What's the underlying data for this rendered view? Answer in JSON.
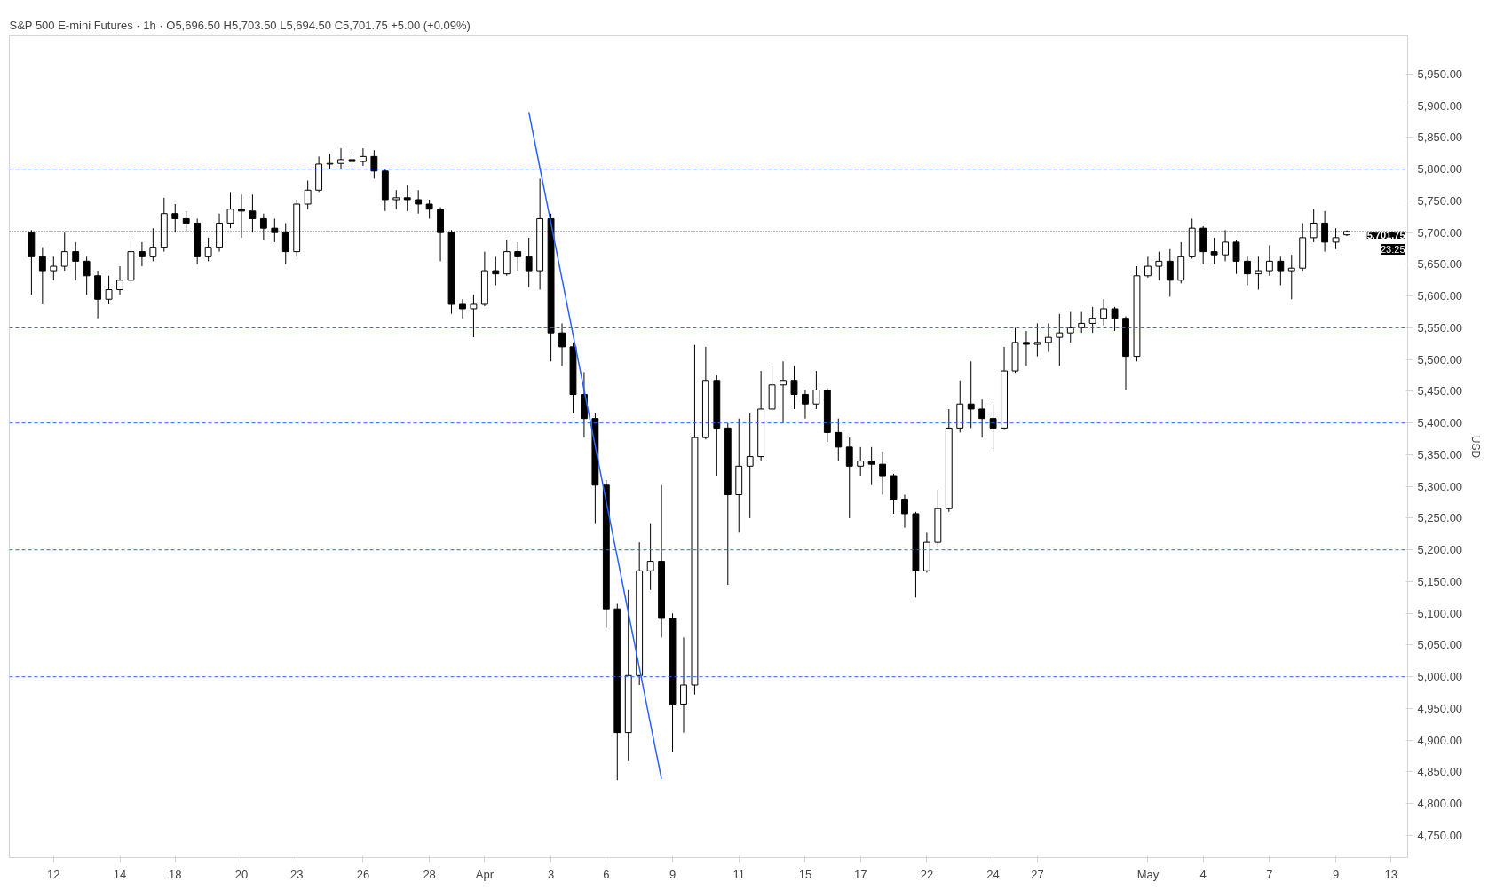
{
  "chart_data": {
    "type": "candlestick",
    "title": "S&P 500 E-mini Futures · 1h · O5,696.50 H5,703.50 L5,694.50 C5,701.75 +5.00 (+0.09%)",
    "ylabel": "USD",
    "color": "#000000",
    "categories": [
      null,
      null,
      "12",
      null,
      null,
      null,
      null,
      null,
      "14",
      null,
      null,
      null,
      null,
      "18",
      null,
      null,
      null,
      null,
      null,
      "20",
      null,
      null,
      null,
      null,
      "23",
      null,
      null,
      null,
      null,
      null,
      "26",
      null,
      null,
      null,
      null,
      null,
      "28",
      null,
      null,
      null,
      null,
      "Apr",
      null,
      null,
      null,
      null,
      null,
      "3",
      null,
      null,
      null,
      null,
      "6",
      null,
      null,
      null,
      null,
      null,
      "9",
      null,
      null,
      null,
      null,
      null,
      "11",
      null,
      null,
      null,
      null,
      null,
      "15",
      null,
      null,
      null,
      null,
      "17",
      null,
      null,
      null,
      null,
      null,
      "22",
      null,
      null,
      null,
      null,
      null,
      "24",
      null,
      null,
      null,
      "27",
      null,
      null,
      null,
      null,
      null,
      null,
      null,
      null,
      null,
      "May",
      null,
      null,
      null,
      null,
      "4",
      null,
      null,
      null,
      null,
      null,
      "7",
      null,
      null,
      null,
      null,
      null,
      "9",
      null,
      null,
      null,
      null,
      "13",
      null
    ],
    "ohlc": [
      [
        5700,
        5704,
        5602,
        5662
      ],
      [
        5662,
        5677,
        5587,
        5640
      ],
      [
        5640,
        5662,
        5625,
        5647
      ],
      [
        5647,
        5700,
        5640,
        5670
      ],
      [
        5670,
        5685,
        5625,
        5655
      ],
      [
        5655,
        5662,
        5602,
        5632
      ],
      [
        5632,
        5640,
        5565,
        5595
      ],
      [
        5595,
        5632,
        5587,
        5610
      ],
      [
        5610,
        5647,
        5602,
        5625
      ],
      [
        5625,
        5692,
        5620,
        5670
      ],
      [
        5670,
        5685,
        5647,
        5662
      ],
      [
        5662,
        5707,
        5655,
        5677
      ],
      [
        5677,
        5755,
        5670,
        5730
      ],
      [
        5730,
        5745,
        5700,
        5722
      ],
      [
        5722,
        5734,
        5700,
        5715
      ],
      [
        5715,
        5722,
        5650,
        5662
      ],
      [
        5662,
        5692,
        5655,
        5677
      ],
      [
        5677,
        5730,
        5670,
        5715
      ],
      [
        5715,
        5764,
        5707,
        5737
      ],
      [
        5737,
        5760,
        5692,
        5734
      ],
      [
        5734,
        5760,
        5700,
        5722
      ],
      [
        5722,
        5730,
        5689,
        5707
      ],
      [
        5707,
        5722,
        5685,
        5700
      ],
      [
        5700,
        5715,
        5650,
        5670
      ],
      [
        5670,
        5752,
        5662,
        5745
      ],
      [
        5745,
        5782,
        5737,
        5767
      ],
      [
        5767,
        5820,
        5764,
        5808
      ],
      [
        5808,
        5824,
        5800,
        5809
      ],
      [
        5809,
        5833,
        5800,
        5815
      ],
      [
        5815,
        5830,
        5800,
        5812
      ],
      [
        5812,
        5833,
        5805,
        5820
      ],
      [
        5820,
        5830,
        5785,
        5797
      ],
      [
        5797,
        5800,
        5734,
        5752
      ],
      [
        5752,
        5767,
        5737,
        5755
      ],
      [
        5755,
        5775,
        5734,
        5752
      ],
      [
        5752,
        5767,
        5730,
        5745
      ],
      [
        5745,
        5752,
        5722,
        5737
      ],
      [
        5737,
        5740,
        5655,
        5700
      ],
      [
        5700,
        5704,
        5572,
        5587
      ],
      [
        5587,
        5595,
        5565,
        5580
      ],
      [
        5580,
        5602,
        5535,
        5587
      ],
      [
        5587,
        5670,
        5584,
        5640
      ],
      [
        5640,
        5662,
        5617,
        5635
      ],
      [
        5635,
        5689,
        5632,
        5670
      ],
      [
        5670,
        5685,
        5640,
        5662
      ],
      [
        5662,
        5692,
        5614,
        5640
      ],
      [
        5640,
        5785,
        5610,
        5722
      ],
      [
        5722,
        5730,
        5497,
        5542
      ],
      [
        5542,
        5557,
        5490,
        5520
      ],
      [
        5520,
        5527,
        5415,
        5445
      ],
      [
        5445,
        5480,
        5377,
        5407
      ],
      [
        5407,
        5415,
        5242,
        5302
      ],
      [
        5302,
        5310,
        5077,
        5107
      ],
      [
        5107,
        5115,
        4837,
        4912
      ],
      [
        4912,
        5137,
        4867,
        5002
      ],
      [
        5002,
        5212,
        4987,
        5167
      ],
      [
        5167,
        5242,
        5137,
        5182
      ],
      [
        5182,
        5302,
        5062,
        5092
      ],
      [
        5092,
        5100,
        4882,
        4957
      ],
      [
        4957,
        5062,
        4912,
        4987
      ],
      [
        4987,
        5523,
        4972,
        5377
      ],
      [
        5377,
        5520,
        5374,
        5467
      ],
      [
        5467,
        5475,
        5317,
        5392
      ],
      [
        5392,
        5400,
        5145,
        5287
      ],
      [
        5287,
        5407,
        5227,
        5332
      ],
      [
        5332,
        5415,
        5250,
        5347
      ],
      [
        5347,
        5482,
        5340,
        5422
      ],
      [
        5422,
        5490,
        5419,
        5460
      ],
      [
        5460,
        5497,
        5400,
        5467
      ],
      [
        5467,
        5490,
        5422,
        5445
      ],
      [
        5445,
        5452,
        5407,
        5430
      ],
      [
        5430,
        5482,
        5422,
        5452
      ],
      [
        5452,
        5455,
        5370,
        5385
      ],
      [
        5385,
        5407,
        5340,
        5362
      ],
      [
        5362,
        5377,
        5250,
        5332
      ],
      [
        5332,
        5362,
        5317,
        5340
      ],
      [
        5340,
        5362,
        5302,
        5335
      ],
      [
        5335,
        5355,
        5287,
        5317
      ],
      [
        5317,
        5320,
        5257,
        5280
      ],
      [
        5280,
        5287,
        5235,
        5257
      ],
      [
        5257,
        5260,
        5125,
        5167
      ],
      [
        5167,
        5227,
        5164,
        5212
      ],
      [
        5212,
        5295,
        5205,
        5265
      ],
      [
        5265,
        5422,
        5260,
        5392
      ],
      [
        5392,
        5467,
        5385,
        5430
      ],
      [
        5430,
        5497,
        5392,
        5422
      ],
      [
        5422,
        5437,
        5377,
        5407
      ],
      [
        5407,
        5430,
        5355,
        5392
      ],
      [
        5392,
        5520,
        5389,
        5482
      ],
      [
        5482,
        5550,
        5479,
        5527
      ],
      [
        5527,
        5545,
        5490,
        5524
      ],
      [
        5524,
        5557,
        5505,
        5527
      ],
      [
        5527,
        5557,
        5512,
        5535
      ],
      [
        5535,
        5572,
        5490,
        5542
      ],
      [
        5542,
        5575,
        5527,
        5550
      ],
      [
        5550,
        5575,
        5542,
        5557
      ],
      [
        5557,
        5583,
        5542,
        5565
      ],
      [
        5565,
        5595,
        5554,
        5580
      ],
      [
        5580,
        5583,
        5545,
        5565
      ],
      [
        5565,
        5568,
        5452,
        5505
      ],
      [
        5505,
        5647,
        5497,
        5632
      ],
      [
        5632,
        5662,
        5629,
        5647
      ],
      [
        5647,
        5670,
        5625,
        5655
      ],
      [
        5655,
        5674,
        5599,
        5625
      ],
      [
        5625,
        5685,
        5620,
        5662
      ],
      [
        5662,
        5722,
        5659,
        5707
      ],
      [
        5707,
        5710,
        5650,
        5670
      ],
      [
        5670,
        5692,
        5650,
        5665
      ],
      [
        5665,
        5704,
        5655,
        5685
      ],
      [
        5685,
        5688,
        5635,
        5655
      ],
      [
        5655,
        5662,
        5617,
        5635
      ],
      [
        5635,
        5662,
        5610,
        5640
      ],
      [
        5640,
        5680,
        5632,
        5655
      ],
      [
        5655,
        5662,
        5617,
        5640
      ],
      [
        5640,
        5665,
        5595,
        5644
      ],
      [
        5644,
        5715,
        5640,
        5692
      ],
      [
        5692,
        5737,
        5685,
        5715
      ],
      [
        5715,
        5734,
        5670,
        5685
      ],
      [
        5685,
        5707,
        5674,
        5692
      ],
      [
        5696.5,
        5703.5,
        5694.5,
        5701.75
      ],
      null,
      null,
      null,
      null,
      null
    ],
    "series": [
      {
        "type": "line",
        "color": "#2962ff",
        "values": [
          null,
          null,
          null,
          null,
          null,
          null,
          null,
          null,
          null,
          null,
          null,
          null,
          null,
          null,
          null,
          null,
          null,
          null,
          null,
          null,
          null,
          null,
          null,
          null,
          null,
          null,
          null,
          null,
          null,
          null,
          null,
          null,
          null,
          null,
          null,
          null,
          null,
          null,
          null,
          null,
          null,
          null,
          null,
          null,
          null,
          5890,
          5802,
          5715,
          5627,
          5539,
          5452,
          5364,
          5276,
          5189,
          5101,
          5014,
          4926,
          4839,
          null,
          null,
          null,
          null,
          null,
          null,
          null,
          null,
          null,
          null,
          null,
          null,
          null,
          null,
          null,
          null,
          null,
          null,
          null,
          null,
          null,
          null,
          null,
          null,
          null,
          null,
          null,
          null,
          null,
          null,
          null,
          null,
          null,
          null,
          null,
          null,
          null,
          null,
          null,
          null,
          null,
          null,
          null,
          null,
          null,
          null,
          null,
          null,
          null,
          null,
          null,
          null,
          null,
          null,
          null,
          null,
          null,
          null,
          null,
          null,
          null,
          null,
          null,
          null,
          null,
          null,
          null
        ]
      }
    ],
    "ylim": [
      4715,
      6010
    ],
    "yticks": [
      {
        "value": 4750,
        "label": "4,750.00"
      },
      {
        "value": 4800,
        "label": "4,800.00"
      },
      {
        "value": 4850,
        "label": "4,850.00"
      },
      {
        "value": 4900,
        "label": "4,900.00"
      },
      {
        "value": 4950,
        "label": "4,950.00"
      },
      {
        "value": 5000,
        "label": "5,000.00"
      },
      {
        "value": 5050,
        "label": "5,050.00"
      },
      {
        "value": 5100,
        "label": "5,100.00"
      },
      {
        "value": 5150,
        "label": "5,150.00"
      },
      {
        "value": 5200,
        "label": "5,200.00"
      },
      {
        "value": 5250,
        "label": "5,250.00"
      },
      {
        "value": 5300,
        "label": "5,300.00"
      },
      {
        "value": 5350,
        "label": "5,350.00"
      },
      {
        "value": 5400,
        "label": "5,400.00"
      },
      {
        "value": 5450,
        "label": "5,450.00"
      },
      {
        "value": 5500,
        "label": "5,500.00"
      },
      {
        "value": 5550,
        "label": "5,550.00"
      },
      {
        "value": 5600,
        "label": "5,600.00"
      },
      {
        "value": 5650,
        "label": "5,650.00"
      },
      {
        "value": 5700,
        "label": "5,700.00"
      },
      {
        "value": 5750,
        "label": "5,750.00"
      },
      {
        "value": 5800,
        "label": "5,800.00"
      },
      {
        "value": 5850,
        "label": "5,850.00"
      },
      {
        "value": 5900,
        "label": "5,900.00"
      },
      {
        "value": 5950,
        "label": "5,950.00"
      }
    ],
    "ref_lines": [
      {
        "axis": "y",
        "value": 5800,
        "color": "#2962ff",
        "line_style": "dashed"
      },
      {
        "axis": "y",
        "value": 5550,
        "color": "#2962ff",
        "line_style": "dashed"
      },
      {
        "axis": "y",
        "value": 5400,
        "color": "#2962ff",
        "line_style": "dashed"
      },
      {
        "axis": "y",
        "value": 5200,
        "color": "#2962ff",
        "line_style": "dashed"
      },
      {
        "axis": "y",
        "value": 5000,
        "color": "#2962ff",
        "line_style": "dashed"
      },
      {
        "axis": "y",
        "value": 5701.75,
        "label": "5,701.75",
        "color": "#000000",
        "line_style": "dotted"
      }
    ],
    "annotations": [
      "23:25"
    ],
    "grid": false
  }
}
